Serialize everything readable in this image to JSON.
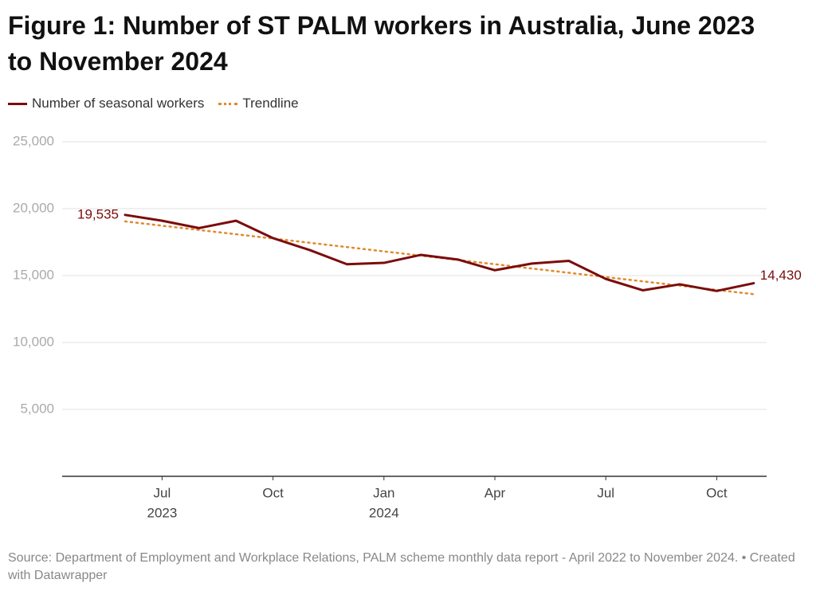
{
  "chart_data": {
    "type": "line",
    "title": "Figure 1: Number of ST PALM workers in Australia, June 2023 to November 2024",
    "source": "Source: Department of Employment and Workplace Relations, PALM scheme monthly data report - April 2022 to November 2024. • Created with Datawrapper",
    "x": [
      "2023-06",
      "2023-07",
      "2023-08",
      "2023-09",
      "2023-10",
      "2023-11",
      "2023-12",
      "2024-01",
      "2024-02",
      "2024-03",
      "2024-04",
      "2024-05",
      "2024-06",
      "2024-07",
      "2024-08",
      "2024-09",
      "2024-10",
      "2024-11"
    ],
    "series": [
      {
        "name": "Number of seasonal workers",
        "color": "#7b0c0c",
        "style": "solid",
        "values": [
          19535,
          19100,
          18550,
          19100,
          17800,
          16900,
          15850,
          15950,
          16550,
          16200,
          15400,
          15900,
          16100,
          14750,
          13900,
          14350,
          13850,
          14430
        ],
        "value_labels": [
          "19,535",
          null,
          null,
          null,
          null,
          null,
          null,
          null,
          null,
          null,
          null,
          null,
          null,
          null,
          null,
          null,
          null,
          "14,430"
        ]
      },
      {
        "name": "Trendline",
        "color": "#e08a2c",
        "style": "dotted",
        "values": [
          19050,
          18730,
          18410,
          18090,
          17770,
          17450,
          17130,
          16810,
          16490,
          16170,
          15850,
          15530,
          15210,
          14890,
          14570,
          14250,
          13930,
          13610
        ]
      }
    ],
    "ylim": [
      0,
      25000
    ],
    "yticks": [
      {
        "value": 5000,
        "label": "5,000"
      },
      {
        "value": 10000,
        "label": "10,000"
      },
      {
        "value": 15000,
        "label": "15,000"
      },
      {
        "value": 20000,
        "label": "20,000"
      },
      {
        "value": 25000,
        "label": "25,000"
      }
    ],
    "xticks": [
      {
        "value": "2023-07",
        "label": "Jul",
        "year": "2023"
      },
      {
        "value": "2023-10",
        "label": "Oct"
      },
      {
        "value": "2024-01",
        "label": "Jan",
        "year": "2024"
      },
      {
        "value": "2024-04",
        "label": "Apr"
      },
      {
        "value": "2024-07",
        "label": "Jul"
      },
      {
        "value": "2024-10",
        "label": "Oct"
      }
    ],
    "grid": true
  }
}
